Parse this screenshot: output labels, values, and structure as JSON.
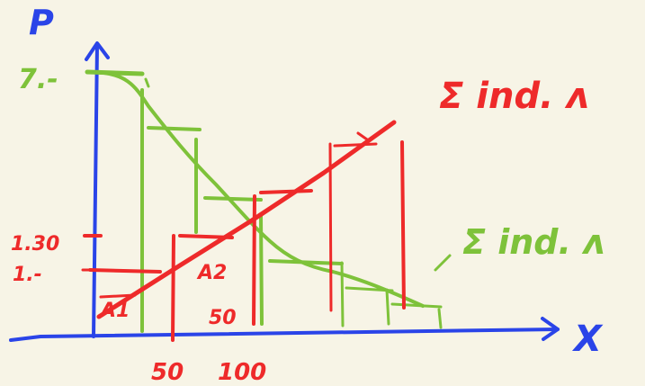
{
  "axes": {
    "y_label": "P",
    "x_label": "X"
  },
  "y_ticks": {
    "top": "7.-",
    "mid": "1.30",
    "low": "1.-"
  },
  "x_ticks": {
    "a": "50",
    "b": "100"
  },
  "inline_labels": {
    "a1": "A1",
    "a2": "A2",
    "fifty": "50"
  },
  "curve_labels": {
    "supply": "Σ ind. ʌ",
    "demand": "Σ ind. ʌ"
  },
  "colors": {
    "background": "#f7f4e6",
    "axis": "#2a44e8",
    "supply": "#ee2a2a",
    "demand": "#7ec23a"
  }
}
